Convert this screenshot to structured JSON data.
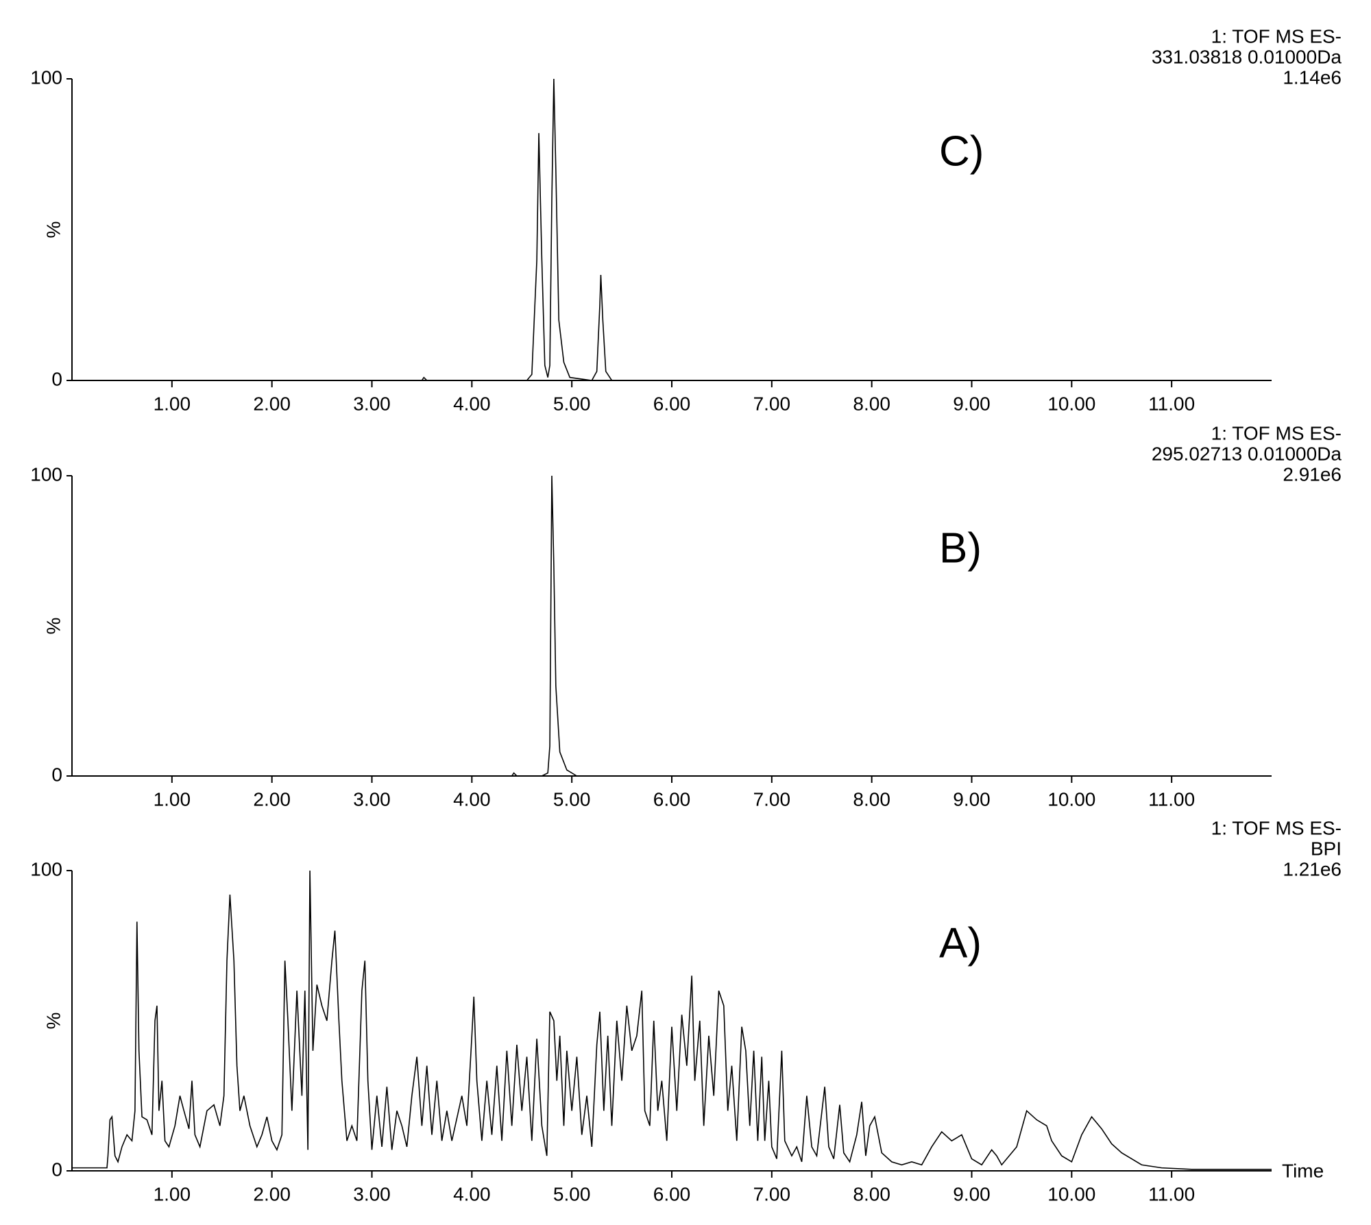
{
  "chart_data": [
    {
      "type": "line",
      "label": "C)",
      "header": [
        "1: TOF MS ES-",
        "331.03818 0.01000Da",
        "1.14e6"
      ],
      "ylabel": "%",
      "color": "#000000",
      "x": [
        0,
        3.5,
        3.52,
        3.55,
        4.55,
        4.6,
        4.65,
        4.67,
        4.7,
        4.73,
        4.76,
        4.78,
        4.8,
        4.82,
        4.84,
        4.87,
        4.92,
        4.98,
        5.2,
        5.25,
        5.28,
        5.29,
        5.31,
        5.34,
        5.4,
        12
      ],
      "values": [
        0,
        0,
        1,
        0,
        0,
        2,
        40,
        82,
        40,
        5,
        1,
        5,
        60,
        100,
        70,
        20,
        6,
        1,
        0,
        3,
        25,
        35,
        20,
        3,
        0,
        0
      ],
      "xlim": [
        0,
        12
      ],
      "ylim": [
        0,
        100
      ],
      "yticks": [
        0,
        100
      ],
      "xticks": [
        {
          "value": 1,
          "label": "1.00"
        },
        {
          "value": 2,
          "label": "2.00"
        },
        {
          "value": 3,
          "label": "3.00"
        },
        {
          "value": 4,
          "label": "4.00"
        },
        {
          "value": 5,
          "label": "5.00"
        },
        {
          "value": 6,
          "label": "6.00"
        },
        {
          "value": 7,
          "label": "7.00"
        },
        {
          "value": 8,
          "label": "8.00"
        },
        {
          "value": 9,
          "label": "9.00"
        },
        {
          "value": 10,
          "label": "10.00"
        },
        {
          "value": 11,
          "label": "11.00"
        }
      ]
    },
    {
      "type": "line",
      "label": "B)",
      "header": [
        "1: TOF MS ES-",
        "295.02713 0.01000Da",
        "2.91e6"
      ],
      "ylabel": "%",
      "color": "#000000",
      "x": [
        0,
        4.4,
        4.42,
        4.45,
        4.7,
        4.76,
        4.78,
        4.8,
        4.82,
        4.84,
        4.88,
        4.95,
        5.05,
        12
      ],
      "values": [
        0,
        0,
        1,
        0,
        0,
        1,
        10,
        100,
        70,
        30,
        8,
        2,
        0,
        0
      ],
      "xlim": [
        0,
        12
      ],
      "ylim": [
        0,
        100
      ],
      "yticks": [
        0,
        100
      ],
      "xticks": [
        {
          "value": 1,
          "label": "1.00"
        },
        {
          "value": 2,
          "label": "2.00"
        },
        {
          "value": 3,
          "label": "3.00"
        },
        {
          "value": 4,
          "label": "4.00"
        },
        {
          "value": 5,
          "label": "5.00"
        },
        {
          "value": 6,
          "label": "6.00"
        },
        {
          "value": 7,
          "label": "7.00"
        },
        {
          "value": 8,
          "label": "8.00"
        },
        {
          "value": 9,
          "label": "9.00"
        },
        {
          "value": 10,
          "label": "10.00"
        },
        {
          "value": 11,
          "label": "11.00"
        }
      ]
    },
    {
      "type": "line",
      "label": "A)",
      "header": [
        "1: TOF MS ES-",
        "BPI",
        "1.21e6"
      ],
      "ylabel": "%",
      "xlabel": "Time",
      "color": "#000000",
      "x": [
        0,
        0.35,
        0.36,
        0.38,
        0.4,
        0.43,
        0.46,
        0.5,
        0.55,
        0.6,
        0.63,
        0.65,
        0.67,
        0.7,
        0.75,
        0.8,
        0.83,
        0.85,
        0.87,
        0.9,
        0.93,
        0.97,
        1.03,
        1.08,
        1.12,
        1.17,
        1.2,
        1.23,
        1.28,
        1.35,
        1.42,
        1.48,
        1.52,
        1.55,
        1.58,
        1.62,
        1.65,
        1.68,
        1.72,
        1.78,
        1.85,
        1.9,
        1.95,
        2,
        2.05,
        2.1,
        2.13,
        2.16,
        2.2,
        2.25,
        2.3,
        2.33,
        2.36,
        2.38,
        2.41,
        2.45,
        2.5,
        2.55,
        2.6,
        2.63,
        2.67,
        2.7,
        2.75,
        2.8,
        2.85,
        2.9,
        2.93,
        2.96,
        3,
        3.05,
        3.1,
        3.15,
        3.2,
        3.25,
        3.3,
        3.35,
        3.4,
        3.45,
        3.5,
        3.55,
        3.6,
        3.65,
        3.7,
        3.75,
        3.8,
        3.9,
        3.95,
        4,
        4.02,
        4.05,
        4.1,
        4.15,
        4.2,
        4.25,
        4.3,
        4.35,
        4.4,
        4.45,
        4.5,
        4.55,
        4.6,
        4.65,
        4.7,
        4.75,
        4.78,
        4.82,
        4.85,
        4.88,
        4.92,
        4.95,
        5,
        5.05,
        5.1,
        5.15,
        5.2,
        5.25,
        5.28,
        5.32,
        5.36,
        5.4,
        5.45,
        5.5,
        5.55,
        5.6,
        5.65,
        5.7,
        5.73,
        5.78,
        5.82,
        5.86,
        5.9,
        5.95,
        6,
        6.05,
        6.1,
        6.15,
        6.2,
        6.23,
        6.28,
        6.32,
        6.37,
        6.42,
        6.47,
        6.52,
        6.56,
        6.6,
        6.65,
        6.7,
        6.74,
        6.78,
        6.82,
        6.86,
        6.9,
        6.93,
        6.97,
        7,
        7.05,
        7.1,
        7.13,
        7.2,
        7.25,
        7.3,
        7.35,
        7.4,
        7.45,
        7.53,
        7.57,
        7.62,
        7.68,
        7.72,
        7.78,
        7.85,
        7.9,
        7.94,
        7.98,
        8.03,
        8.1,
        8.2,
        8.3,
        8.4,
        8.5,
        8.6,
        8.7,
        8.8,
        8.9,
        9,
        9.1,
        9.2,
        9.25,
        9.3,
        9.45,
        9.55,
        9.65,
        9.75,
        9.8,
        9.9,
        10,
        10.1,
        10.2,
        10.3,
        10.4,
        10.5,
        10.6,
        10.7,
        10.9,
        11.2,
        12
      ],
      "values": [
        1,
        1,
        5,
        17,
        18,
        5,
        3,
        8,
        12,
        10,
        20,
        83,
        40,
        18,
        17,
        12,
        50,
        55,
        20,
        30,
        10,
        8,
        15,
        25,
        20,
        14,
        30,
        12,
        8,
        20,
        22,
        15,
        25,
        70,
        92,
        70,
        35,
        20,
        25,
        15,
        8,
        12,
        18,
        10,
        7,
        12,
        70,
        50,
        20,
        60,
        25,
        60,
        7,
        100,
        40,
        62,
        55,
        50,
        70,
        80,
        50,
        30,
        10,
        15,
        10,
        60,
        70,
        30,
        7,
        25,
        8,
        28,
        7,
        20,
        15,
        8,
        25,
        38,
        15,
        35,
        12,
        30,
        10,
        20,
        10,
        25,
        15,
        45,
        58,
        30,
        10,
        30,
        12,
        35,
        10,
        40,
        15,
        42,
        20,
        38,
        10,
        44,
        15,
        5,
        53,
        50,
        30,
        45,
        15,
        40,
        20,
        38,
        12,
        25,
        8,
        42,
        53,
        20,
        45,
        15,
        50,
        30,
        55,
        40,
        45,
        60,
        20,
        15,
        50,
        20,
        30,
        10,
        48,
        20,
        52,
        35,
        65,
        30,
        50,
        15,
        45,
        25,
        60,
        55,
        20,
        35,
        10,
        48,
        40,
        15,
        40,
        10,
        38,
        10,
        30,
        8,
        4,
        40,
        10,
        5,
        8,
        3,
        25,
        8,
        5,
        28,
        8,
        4,
        22,
        6,
        3,
        12,
        23,
        5,
        15,
        18,
        6,
        3,
        2,
        3,
        2,
        8,
        13,
        10,
        12,
        4,
        2,
        7,
        5,
        2,
        8,
        20,
        17,
        15,
        10,
        5,
        3,
        12,
        18,
        14,
        9,
        6,
        4,
        2,
        1,
        0.5,
        0.5
      ],
      "xlim": [
        0,
        12
      ],
      "ylim": [
        0,
        100
      ],
      "yticks": [
        0,
        100
      ],
      "xticks": [
        {
          "value": 1,
          "label": "1.00"
        },
        {
          "value": 2,
          "label": "2.00"
        },
        {
          "value": 3,
          "label": "3.00"
        },
        {
          "value": 4,
          "label": "4.00"
        },
        {
          "value": 5,
          "label": "5.00"
        },
        {
          "value": 6,
          "label": "6.00"
        },
        {
          "value": 7,
          "label": "7.00"
        },
        {
          "value": 8,
          "label": "8.00"
        },
        {
          "value": 9,
          "label": "9.00"
        },
        {
          "value": 10,
          "label": "10.00"
        },
        {
          "value": 11,
          "label": "11.00"
        }
      ]
    }
  ]
}
